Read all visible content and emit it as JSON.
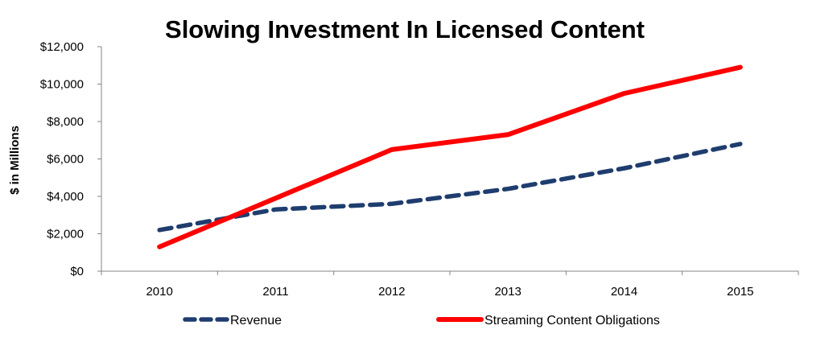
{
  "chart_data": {
    "type": "line",
    "title": "Slowing Investment In Licensed Content",
    "xlabel": "",
    "ylabel": "$ in Millions",
    "x": [
      "2010",
      "2011",
      "2012",
      "2013",
      "2014",
      "2015"
    ],
    "ylim": [
      0,
      12000
    ],
    "y_ticks": [
      "$0",
      "$2,000",
      "$4,000",
      "$6,000",
      "$8,000",
      "$10,000",
      "$12,000"
    ],
    "grid": false,
    "legend_position": "bottom",
    "series": [
      {
        "name": "Revenue",
        "values": [
          2200,
          3300,
          3600,
          4400,
          5500,
          6800
        ],
        "color": "#1F3D6E",
        "style": "dashed"
      },
      {
        "name": "Streaming Content Obligations",
        "values": [
          1300,
          3900,
          6500,
          7300,
          9500,
          10900
        ],
        "color": "#FF0000",
        "style": "solid"
      }
    ]
  }
}
